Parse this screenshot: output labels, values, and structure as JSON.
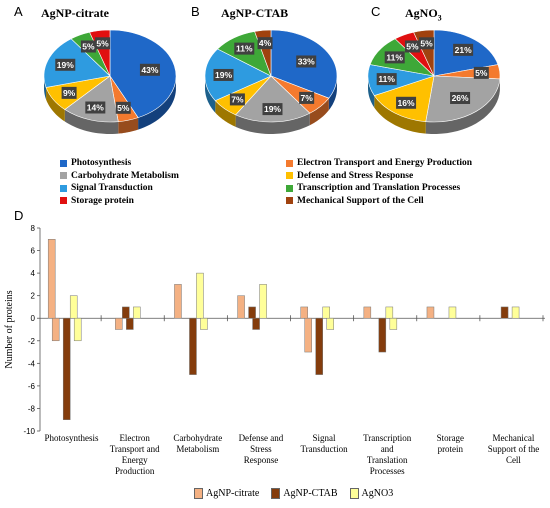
{
  "panel_labels": {
    "a": "A",
    "b": "B",
    "c": "C",
    "d": "D"
  },
  "pie_titles": {
    "a": "AgNP-citrate",
    "b": "AgNP-CTAB",
    "c_base": "AgNO",
    "c_sub": "3"
  },
  "legend_items": [
    {
      "label": "Photosynthesis",
      "color": "#1f68c8"
    },
    {
      "label": "Electron Transport and Energy Production",
      "color": "#f47a2e"
    },
    {
      "label": "Carbohydrate Metabolism",
      "color": "#a3a3a3"
    },
    {
      "label": "Defense and Stress Response",
      "color": "#ffc000"
    },
    {
      "label": "Signal Transduction",
      "color": "#2e9be0"
    },
    {
      "label": "Transcription and Translation Processes",
      "color": "#3ea838"
    },
    {
      "label": "Storage protein",
      "color": "#e01010"
    },
    {
      "label": "Mechanical Support of the Cell",
      "color": "#a0420f"
    }
  ],
  "chart_data": [
    {
      "type": "pie",
      "title": "AgNP-citrate",
      "slices": [
        {
          "category": "Photosynthesis",
          "value": 43,
          "label": "43%"
        },
        {
          "category": "Electron Transport and Energy Production",
          "value": 5,
          "label": "5%"
        },
        {
          "category": "Carbohydrate Metabolism",
          "value": 14,
          "label": "14%"
        },
        {
          "category": "Defense and Stress Response",
          "value": 9,
          "label": "9%"
        },
        {
          "category": "Signal Transduction",
          "value": 19,
          "label": "19%"
        },
        {
          "category": "Transcription and Translation Processes",
          "value": 5,
          "label": "5%"
        },
        {
          "category": "Storage protein",
          "value": 5,
          "label": "5%"
        }
      ]
    },
    {
      "type": "pie",
      "title": "AgNP-CTAB",
      "slices": [
        {
          "category": "Photosynthesis",
          "value": 33,
          "label": "33%"
        },
        {
          "category": "Electron Transport and Energy Production",
          "value": 7,
          "label": "7%"
        },
        {
          "category": "Carbohydrate Metabolism",
          "value": 19,
          "label": "19%"
        },
        {
          "category": "Defense and Stress Response",
          "value": 7,
          "label": "7%"
        },
        {
          "category": "Signal Transduction",
          "value": 19,
          "label": "19%"
        },
        {
          "category": "Transcription and Translation Processes",
          "value": 11,
          "label": "11%"
        },
        {
          "category": "Mechanical Support of the Cell",
          "value": 4,
          "label": "4%"
        }
      ]
    },
    {
      "type": "pie",
      "title": "AgNO3",
      "slices": [
        {
          "category": "Photosynthesis",
          "value": 21,
          "label": "21%"
        },
        {
          "category": "Electron Transport and Energy Production",
          "value": 5,
          "label": "5%"
        },
        {
          "category": "Carbohydrate Metabolism",
          "value": 26,
          "label": "26%"
        },
        {
          "category": "Defense and Stress Response",
          "value": 16,
          "label": "16%"
        },
        {
          "category": "Signal Transduction",
          "value": 11,
          "label": "11%"
        },
        {
          "category": "Transcription and Translation Processes",
          "value": 11,
          "label": "11%"
        },
        {
          "category": "Storage protein",
          "value": 5,
          "label": "5%"
        },
        {
          "category": "Mechanical Support of the Cell",
          "value": 5,
          "label": "5%"
        }
      ]
    },
    {
      "type": "bar",
      "categories": [
        "Photosynthesis",
        "Electron Transport and Energy Production",
        "Carbohydrate Metabolism",
        "Defense and Stress Response",
        "Signal Transduction",
        "Transcription and Translation Processes",
        "Storage protein",
        "Mechanical Support of the Cell"
      ],
      "category_lines": [
        [
          "Photosynthesis"
        ],
        [
          "Electron",
          "Transport and",
          "Energy",
          "Production"
        ],
        [
          "Carbohydrate",
          "Metabolism"
        ],
        [
          "Defense and",
          "Stress",
          "Response"
        ],
        [
          "Signal",
          "Transduction"
        ],
        [
          "Transcription",
          "and",
          "Translation",
          "Processes"
        ],
        [
          "Storage",
          "protein"
        ],
        [
          "Mechanical",
          "Support of the",
          "Cell"
        ]
      ],
      "series": [
        {
          "name": "AgNP-citrate",
          "color": "#f4b183",
          "up": [
            7,
            0,
            3,
            2,
            1,
            1,
            1,
            0
          ],
          "down": [
            -2,
            -1,
            0,
            0,
            -3,
            0,
            0,
            0
          ]
        },
        {
          "name": "AgNP-CTAB",
          "color": "#843c0c",
          "up": [
            0,
            1,
            0,
            1,
            0,
            0,
            0,
            1
          ],
          "down": [
            -9,
            -1,
            -5,
            -1,
            -5,
            -3,
            0,
            0
          ]
        },
        {
          "name": "AgNO3",
          "color": "#ffff99",
          "up": [
            2,
            1,
            4,
            3,
            1,
            1,
            1,
            1
          ],
          "down": [
            -2,
            0,
            -1,
            0,
            -1,
            -1,
            0,
            0
          ]
        }
      ],
      "ylabel": "Number of proteins",
      "ylim": [
        -10,
        8
      ],
      "yticks": [
        8,
        6,
        4,
        2,
        0,
        -2,
        -4,
        -6,
        -8,
        -10
      ]
    }
  ]
}
